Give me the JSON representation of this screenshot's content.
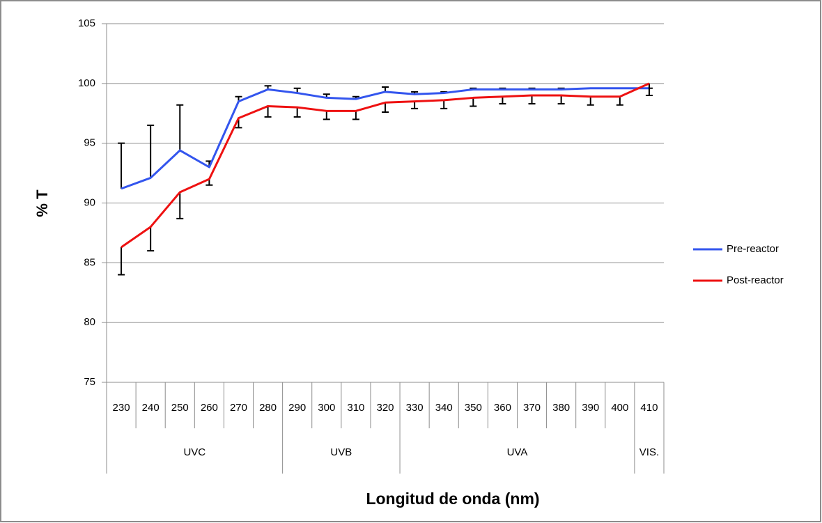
{
  "chart_data": {
    "type": "line",
    "x_label": "Longitud de onda (nm)",
    "y_label": "% T",
    "categories": [
      "230",
      "240",
      "250",
      "260",
      "270",
      "280",
      "290",
      "300",
      "310",
      "320",
      "330",
      "340",
      "350",
      "360",
      "370",
      "380",
      "390",
      "400",
      "410"
    ],
    "groups": [
      {
        "label": "UVC",
        "span": 6
      },
      {
        "label": "UVB",
        "span": 4
      },
      {
        "label": "UVA",
        "span": 8
      },
      {
        "label": "VIS.",
        "span": 1
      }
    ],
    "series": [
      {
        "name": "Pre-reactor",
        "color": "#3355ee",
        "error_direction": "up",
        "values": [
          91.2,
          92.1,
          94.4,
          93.0,
          98.5,
          99.5,
          99.2,
          98.8,
          98.7,
          99.3,
          99.1,
          99.2,
          99.5,
          99.5,
          99.5,
          99.5,
          99.6,
          99.6,
          99.6
        ],
        "errors": [
          3.8,
          4.4,
          3.8,
          0.5,
          0.4,
          0.3,
          0.4,
          0.3,
          0.2,
          0.4,
          0.2,
          0.1,
          0.1,
          0.1,
          0.1,
          0.1,
          0,
          0,
          0
        ]
      },
      {
        "name": "Post-reactor",
        "color": "#ee1111",
        "error_direction": "down",
        "values": [
          86.3,
          88.0,
          90.9,
          92.0,
          97.1,
          98.1,
          98.0,
          97.7,
          97.7,
          98.4,
          98.5,
          98.6,
          98.8,
          98.9,
          99.0,
          99.0,
          98.9,
          98.9,
          100.0
        ],
        "errors": [
          2.3,
          2.0,
          2.2,
          0.5,
          0.8,
          0.9,
          0.8,
          0.7,
          0.7,
          0.8,
          0.6,
          0.7,
          0.7,
          0.6,
          0.7,
          0.7,
          0.7,
          0.7,
          1.0
        ]
      }
    ],
    "ylim": [
      75,
      105
    ],
    "yticks": [
      75,
      80,
      85,
      90,
      95,
      100,
      105
    ],
    "grid": true,
    "legend": "right"
  }
}
